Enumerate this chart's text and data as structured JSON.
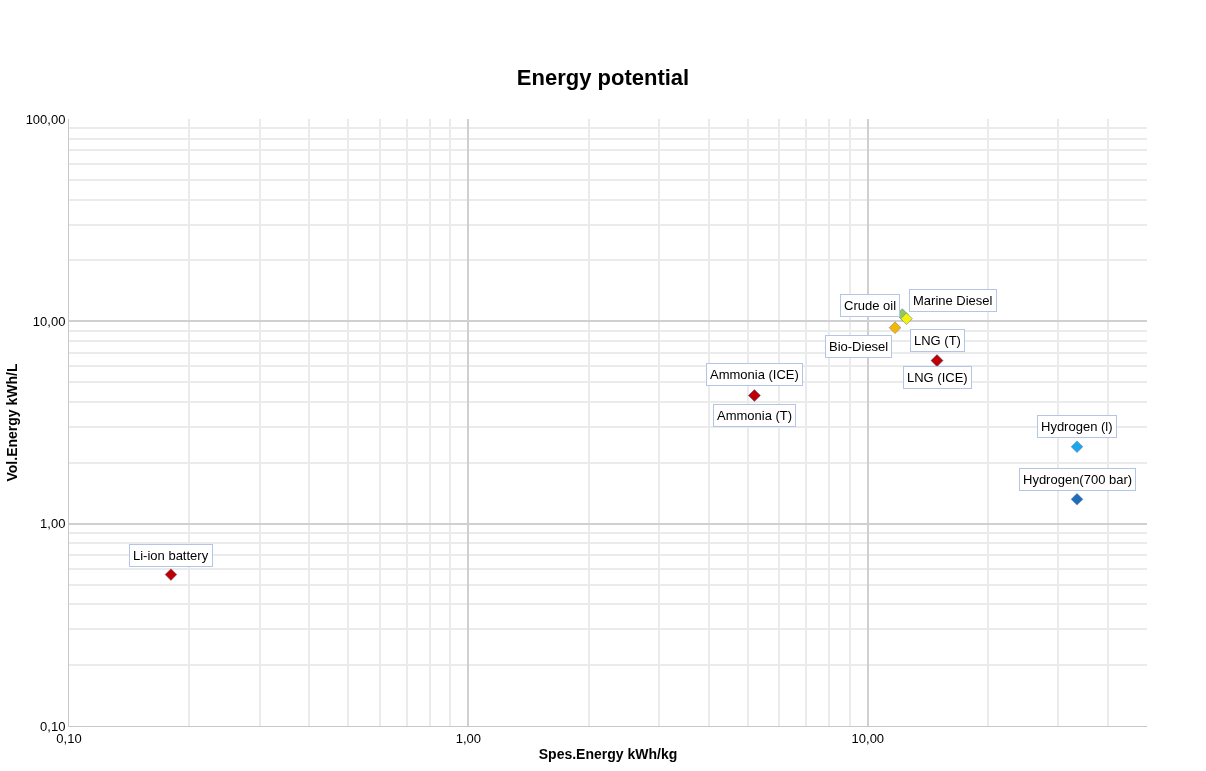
{
  "chart_data": {
    "type": "scatter",
    "title": "Energy potential",
    "xlabel": "Spes.Energy kWh/kg",
    "ylabel": "Vol.Energy kWh/L",
    "log": "xy",
    "grid": true,
    "legend": false,
    "marker": "diamond",
    "xlim": [
      0.1,
      50
    ],
    "ylim": [
      0.1,
      100
    ],
    "xticks": [
      {
        "value": 0.1,
        "label": "0,10"
      },
      {
        "value": 1,
        "label": "1,00"
      },
      {
        "value": 10,
        "label": "10,00"
      }
    ],
    "yticks": [
      {
        "value": 0.1,
        "label": "0,10"
      },
      {
        "value": 1,
        "label": "1,00"
      },
      {
        "value": 10,
        "label": "10,00"
      },
      {
        "value": 100,
        "label": "100,00"
      }
    ],
    "series": [
      {
        "name": "Li-ion battery",
        "color": "#c00000",
        "x": [
          0.18
        ],
        "values": [
          0.56
        ]
      },
      {
        "name": "Ammonia (ICE)",
        "color": "#c00000",
        "x": [
          5.2
        ],
        "values": [
          4.3
        ]
      },
      {
        "name": "Ammonia (T)",
        "color": "#c00000",
        "x": [
          5.2
        ],
        "values": [
          4.3
        ]
      },
      {
        "name": "Bio-Diesel",
        "color": "#f5b800",
        "x": [
          11.7
        ],
        "values": [
          9.3
        ]
      },
      {
        "name": "Crude oil",
        "color": "#8fc95a",
        "x": [
          12.2
        ],
        "values": [
          10.8
        ]
      },
      {
        "name": "Marine Diesel",
        "color": "#f2f20a",
        "x": [
          12.5
        ],
        "values": [
          10.3
        ]
      },
      {
        "name": "LNG (T)",
        "color": "#c00000",
        "x": [
          14.9
        ],
        "values": [
          6.4
        ]
      },
      {
        "name": "LNG (ICE)",
        "color": "#c00000",
        "x": [
          14.9
        ],
        "values": [
          6.4
        ]
      },
      {
        "name": "Hydrogen (l)",
        "color": "#1aa7ec",
        "x": [
          33.4
        ],
        "values": [
          2.4
        ]
      },
      {
        "name": "Hydrogen(700 bar)",
        "color": "#1f6cb8",
        "x": [
          33.4
        ],
        "values": [
          1.32
        ]
      }
    ]
  }
}
